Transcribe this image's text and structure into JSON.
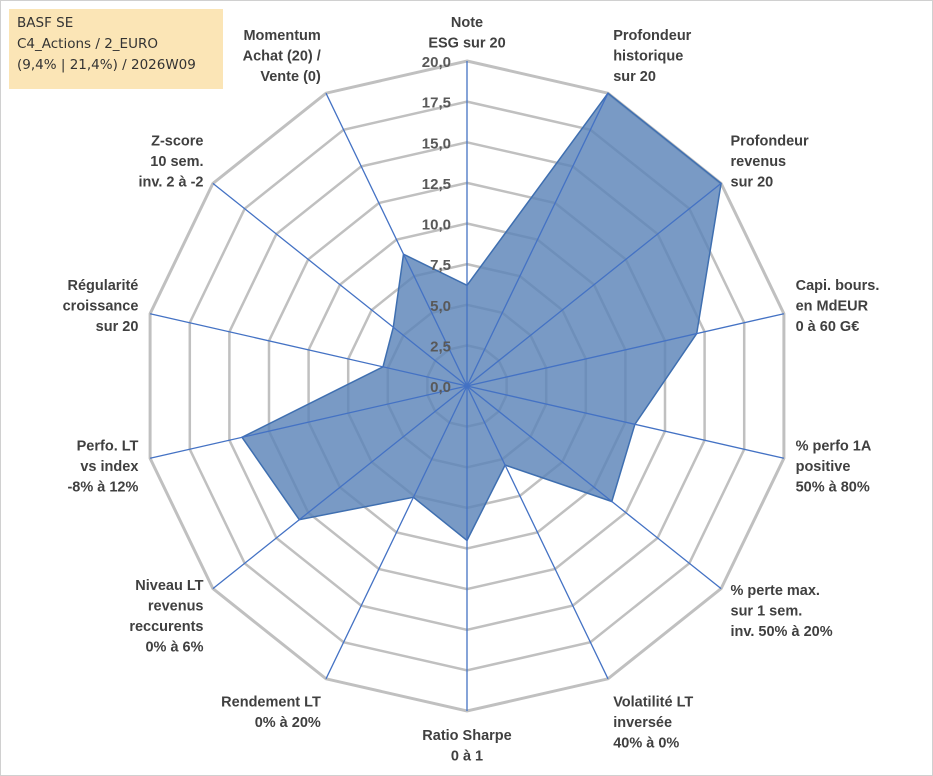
{
  "info": {
    "line1": "BASF SE",
    "line2": "C4_Actions / 2_EURO",
    "line3": "(9,4% | 21,4%) / 2026W09"
  },
  "colors": {
    "fill": "#5b84b8",
    "stroke": "#3f6fb0",
    "spoke": "#4472c4",
    "grid": "#c0c0c0"
  },
  "chart_data": {
    "type": "radar",
    "title": "",
    "rmin": 0,
    "rmax": 20,
    "ticks": [
      "0,0",
      "2,5",
      "5,0",
      "7,5",
      "10,0",
      "12,5",
      "15,0",
      "17,5",
      "20,0"
    ],
    "axes": [
      {
        "label": [
          "Note",
          "ESG sur 20"
        ],
        "value": 6.2
      },
      {
        "label": [
          "Profondeur",
          "historique",
          "sur 20"
        ],
        "value": 20
      },
      {
        "label": [
          "Profondeur",
          "revenus",
          "sur 20"
        ],
        "value": 20
      },
      {
        "label": [
          "Capi. bours.",
          "en MdEUR",
          "0 à 60 G€"
        ],
        "value": 14.5
      },
      {
        "label": [
          "% perfo 1A",
          "positive",
          "50% à 80%"
        ],
        "value": 10.6
      },
      {
        "label": [
          "% perte max.",
          "sur 1 sem.",
          "inv. 50% à 20%"
        ],
        "value": 11.4
      },
      {
        "label": [
          "Volatilité LT",
          "inversée",
          "40% à 0%"
        ],
        "value": 5.4
      },
      {
        "label": [
          "Ratio Sharpe",
          "0 à 1"
        ],
        "value": 9.5
      },
      {
        "label": [
          "Rendement LT",
          "0% à 20%"
        ],
        "value": 7.6
      },
      {
        "label": [
          "Niveau LT",
          "revenus",
          "reccurents",
          "0% à 6%"
        ],
        "value": 13.2
      },
      {
        "label": [
          "Perfo. LT",
          "vs index",
          "-8% à 12%"
        ],
        "value": 14.2
      },
      {
        "label": [
          "Régularité",
          "croissance",
          "sur 20"
        ],
        "value": 5.3
      },
      {
        "label": [
          "Z-score",
          "10 sem.",
          "inv. 2 à -2"
        ],
        "value": 5.8
      },
      {
        "label": [
          "Momentum",
          "Achat (20) /",
          "Vente (0)"
        ],
        "value": 9.0
      }
    ]
  }
}
